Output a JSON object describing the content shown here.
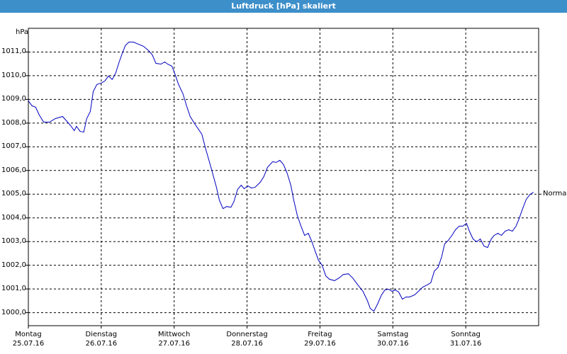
{
  "chart_data": {
    "type": "line",
    "title": "Luftdruck [hPa] skaliert",
    "y_label": "hPa",
    "x": [
      0,
      0.05,
      0.1,
      0.15,
      0.21,
      0.29,
      0.37,
      0.47,
      0.53,
      0.58,
      0.63,
      0.66,
      0.71,
      0.76,
      0.8,
      0.85,
      0.89,
      0.94,
      1.0,
      1.05,
      1.1,
      1.15,
      1.2,
      1.24,
      1.28,
      1.33,
      1.38,
      1.44,
      1.51,
      1.58,
      1.65,
      1.7,
      1.75,
      1.82,
      1.87,
      1.91,
      1.97,
      2.02,
      2.06,
      2.12,
      2.17,
      2.22,
      2.28,
      2.38,
      2.43,
      2.5,
      2.58,
      2.62,
      2.67,
      2.72,
      2.78,
      2.82,
      2.87,
      2.92,
      2.96,
      3.01,
      3.06,
      3.11,
      3.18,
      3.23,
      3.28,
      3.35,
      3.4,
      3.45,
      3.5,
      3.55,
      3.6,
      3.64,
      3.69,
      3.74,
      3.79,
      3.84,
      3.89,
      3.94,
      3.98,
      4.03,
      4.08,
      4.13,
      4.2,
      4.26,
      4.32,
      4.39,
      4.45,
      4.52,
      4.59,
      4.65,
      4.69,
      4.74,
      4.79,
      4.84,
      4.89,
      4.94,
      4.99,
      5.03,
      5.08,
      5.13,
      5.18,
      5.23,
      5.3,
      5.35,
      5.41,
      5.47,
      5.52,
      5.57,
      5.62,
      5.67,
      5.71,
      5.76,
      5.81,
      5.86,
      5.91,
      5.96,
      6.01,
      6.05,
      6.1,
      6.15,
      6.2,
      6.25,
      6.3,
      6.35,
      6.39,
      6.44,
      6.49,
      6.54,
      6.59,
      6.64,
      6.69,
      6.73,
      6.78,
      6.83,
      6.88,
      6.93
    ],
    "values": [
      1008.94,
      1008.73,
      1008.67,
      1008.34,
      1008.04,
      1008.04,
      1008.19,
      1008.28,
      1008.07,
      1007.89,
      1007.68,
      1007.86,
      1007.65,
      1007.62,
      1008.19,
      1008.49,
      1009.33,
      1009.63,
      1009.69,
      1009.78,
      1009.99,
      1009.84,
      1010.13,
      1010.52,
      1010.88,
      1011.27,
      1011.42,
      1011.42,
      1011.33,
      1011.24,
      1011.06,
      1010.88,
      1010.52,
      1010.49,
      1010.58,
      1010.49,
      1010.4,
      1009.99,
      1009.63,
      1009.24,
      1008.73,
      1008.28,
      1007.98,
      1007.53,
      1006.94,
      1006.19,
      1005.29,
      1004.75,
      1004.39,
      1004.48,
      1004.45,
      1004.69,
      1005.2,
      1005.38,
      1005.23,
      1005.35,
      1005.26,
      1005.29,
      1005.5,
      1005.74,
      1006.13,
      1006.37,
      1006.34,
      1006.43,
      1006.25,
      1005.89,
      1005.38,
      1004.75,
      1004.1,
      1003.65,
      1003.26,
      1003.35,
      1002.99,
      1002.54,
      1002.21,
      1002.0,
      1001.55,
      1001.41,
      1001.35,
      1001.46,
      1001.61,
      1001.64,
      1001.46,
      1001.17,
      1000.9,
      1000.51,
      1000.18,
      1000.06,
      1000.36,
      1000.72,
      1000.96,
      1000.99,
      1000.9,
      1000.96,
      1000.87,
      1000.57,
      1000.66,
      1000.66,
      1000.75,
      1000.9,
      1001.08,
      1001.17,
      1001.26,
      1001.76,
      1001.91,
      1002.36,
      1002.9,
      1003.05,
      1003.26,
      1003.5,
      1003.65,
      1003.65,
      1003.77,
      1003.44,
      1003.11,
      1002.99,
      1003.11,
      1002.81,
      1002.75,
      1003.11,
      1003.26,
      1003.35,
      1003.26,
      1003.44,
      1003.5,
      1003.44,
      1003.65,
      1003.95,
      1004.39,
      1004.78,
      1004.99,
      1005.08
    ],
    "color": "#0000c0",
    "xlim": [
      0,
      7
    ],
    "xticks": [
      {
        "value": 0,
        "label": "Montag\n25.07.16"
      },
      {
        "value": 1,
        "label": "Dienstag\n26.07.16"
      },
      {
        "value": 2,
        "label": "Mittwoch\n27.07.16"
      },
      {
        "value": 3,
        "label": "Donnerstag\n28.07.16"
      },
      {
        "value": 4,
        "label": "Freitag\n29.07.16"
      },
      {
        "value": 5,
        "label": "Samstag\n30.07.16"
      },
      {
        "value": 6,
        "label": "Sonntag\n31.07.16"
      }
    ],
    "ylim": [
      999.45,
      1012.0
    ],
    "yticks": [
      {
        "value": 1000,
        "label": "1000,0"
      },
      {
        "value": 1001,
        "label": "1001,0"
      },
      {
        "value": 1002,
        "label": "1002,0"
      },
      {
        "value": 1003,
        "label": "1003,0"
      },
      {
        "value": 1004,
        "label": "1004,0"
      },
      {
        "value": 1005,
        "label": "1005,0"
      },
      {
        "value": 1006,
        "label": "1006,0"
      },
      {
        "value": 1007,
        "label": "1007,0"
      },
      {
        "value": 1008,
        "label": "1008,0"
      },
      {
        "value": 1009,
        "label": "1009,0"
      },
      {
        "value": 1010,
        "label": "1010,0"
      },
      {
        "value": 1011,
        "label": "1011,0"
      }
    ],
    "grid": true,
    "annotation": {
      "text": "Normal",
      "y": 1005
    }
  }
}
